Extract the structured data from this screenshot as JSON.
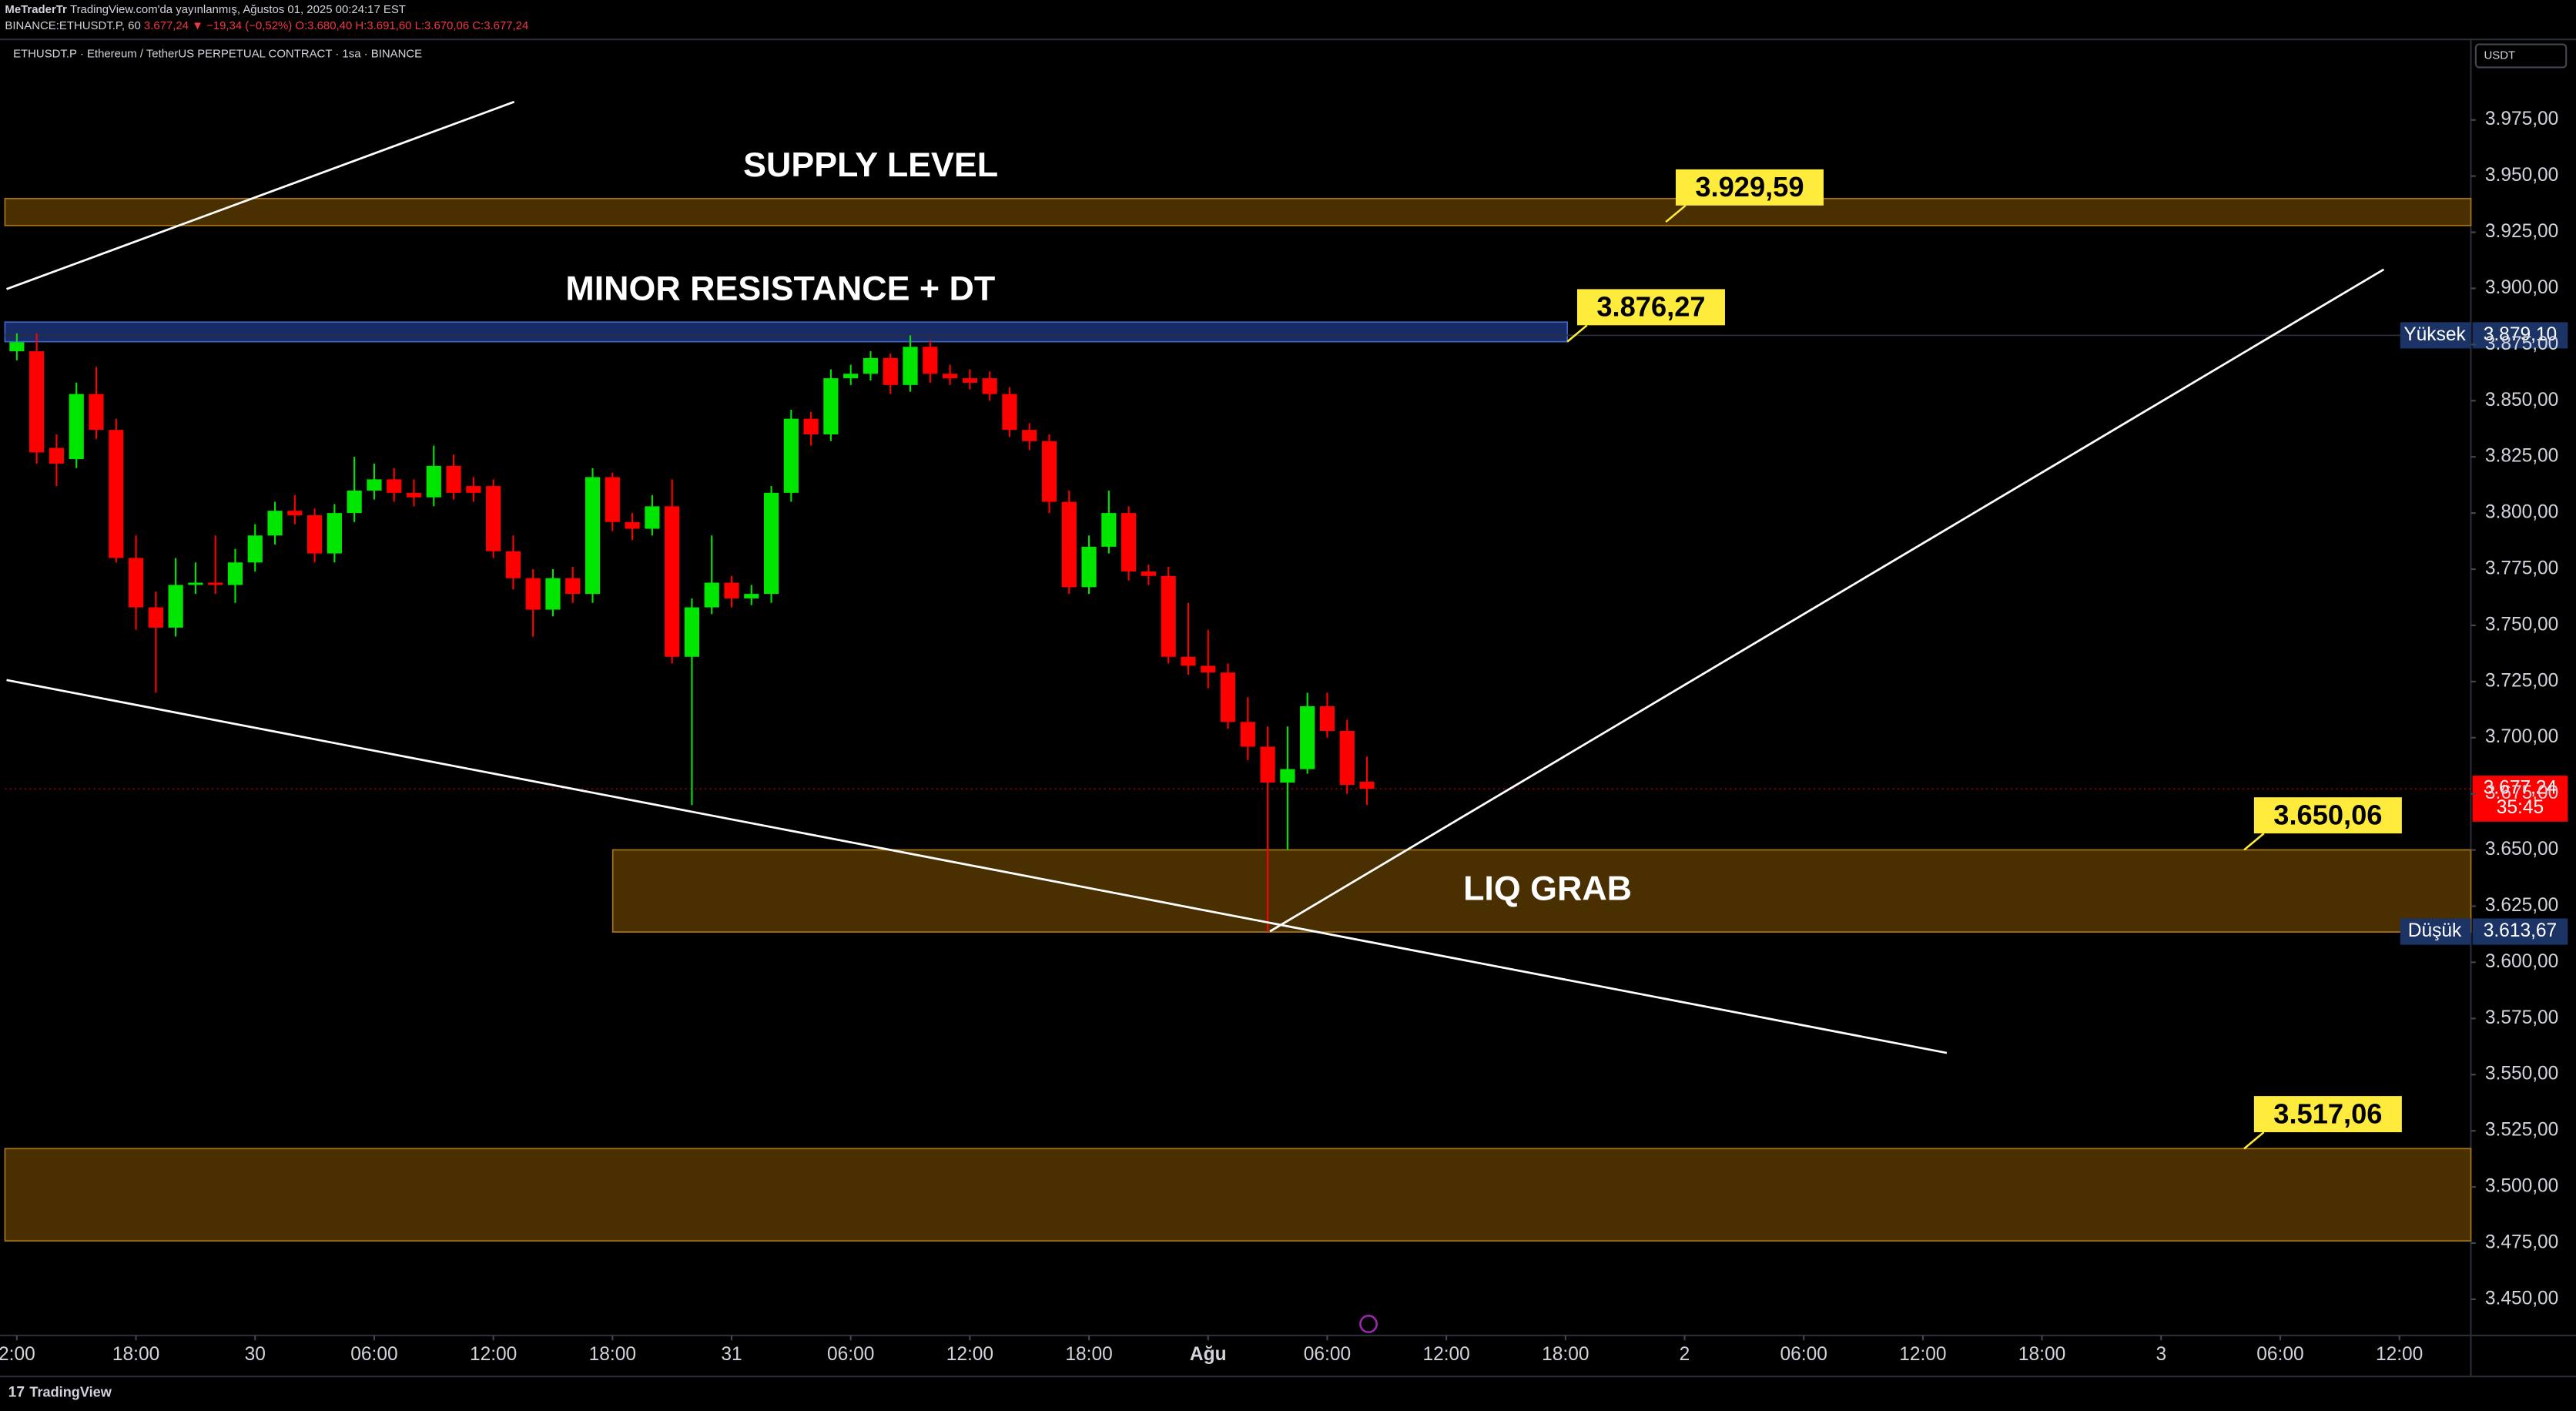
{
  "header": {
    "author": "MeTraderTr",
    "published": "TradingView.com'da yayınlanmış, Ağustos 01, 2025 00:24:17 EST",
    "symbol": "BINANCE:ETHUSDT.P, 60",
    "change": "3.677,24 ▼ −19,34 (−0,52%)",
    "ohlc": "O:3.680,40 H:3.691,60 L:3.670,06 C:3.677,24",
    "footer": "TradingView"
  },
  "chart_data": {
    "type": "candlestick",
    "title": "ETHUSDT.P · Ethereum / TetherUS PERPETUAL CONTRACT · 1sa · BINANCE",
    "currency": "USDT",
    "up_color": "#00e600",
    "down_color": "#ff0000",
    "open": [
      3872,
      3872,
      3829,
      3824,
      3853,
      3837,
      3780,
      3758,
      3749,
      3768,
      3769,
      3768,
      3778,
      3790,
      3801,
      3799,
      3782,
      3800,
      3810,
      3815,
      3809,
      3807,
      3821,
      3812,
      3812,
      3783,
      3771,
      3757,
      3771,
      3764,
      3816,
      3796,
      3793,
      3803,
      3736,
      3758,
      3769,
      3762,
      3764,
      3809,
      3842,
      3835,
      3860,
      3862,
      3869,
      3857,
      3874,
      3862,
      3860,
      3860,
      3853,
      3837,
      3832,
      3805,
      3767,
      3785,
      3800,
      3774,
      3772,
      3736,
      3732,
      3729,
      3707,
      3696,
      3680,
      3686,
      3714,
      3703,
      3680.4
    ],
    "high": [
      3880,
      3880,
      3835,
      3858,
      3865,
      3842,
      3790,
      3765,
      3780,
      3778,
      3790,
      3784,
      3795,
      3805,
      3808,
      3802,
      3804,
      3825,
      3822,
      3820,
      3815,
      3830,
      3826,
      3816,
      3815,
      3790,
      3775,
      3775,
      3776,
      3820,
      3818,
      3800,
      3808,
      3815,
      3762,
      3790,
      3772,
      3768,
      3812,
      3846,
      3845,
      3864,
      3866,
      3872,
      3871,
      3879.1,
      3877,
      3866,
      3864,
      3863,
      3856,
      3840,
      3835,
      3810,
      3790,
      3810,
      3803,
      3777,
      3776,
      3760,
      3748,
      3733,
      3718,
      3705,
      3705,
      3720,
      3720,
      3708,
      3691.6
    ],
    "low": [
      3868,
      3822,
      3812,
      3820,
      3833,
      3778,
      3748,
      3720,
      3745,
      3764,
      3764,
      3760,
      3774,
      3786,
      3795,
      3778,
      3778,
      3796,
      3806,
      3805,
      3803,
      3803,
      3806,
      3805,
      3780,
      3766,
      3745,
      3754,
      3760,
      3760,
      3792,
      3788,
      3790,
      3733,
      3670,
      3755,
      3758,
      3759,
      3760,
      3805,
      3830,
      3832,
      3857,
      3859,
      3853,
      3854,
      3858,
      3857,
      3855,
      3850,
      3834,
      3828,
      3800,
      3764,
      3764,
      3782,
      3770,
      3768,
      3733,
      3728,
      3722,
      3704,
      3690,
      3613.67,
      3650,
      3684,
      3700,
      3675,
      3670.06
    ],
    "close": [
      3876,
      3827,
      3822,
      3853,
      3837,
      3780,
      3758,
      3749,
      3768,
      3769,
      3768,
      3778,
      3790,
      3801,
      3799,
      3782,
      3800,
      3810,
      3815,
      3809,
      3807,
      3821,
      3809,
      3809,
      3783,
      3771,
      3757,
      3771,
      3764,
      3816,
      3796,
      3793,
      3803,
      3736,
      3758,
      3769,
      3762,
      3764,
      3809,
      3842,
      3835,
      3860,
      3862,
      3869,
      3857,
      3874,
      3862,
      3860,
      3858,
      3853,
      3837,
      3832,
      3805,
      3767,
      3785,
      3800,
      3774,
      3772,
      3736,
      3732,
      3729,
      3707,
      3696,
      3680,
      3686,
      3714,
      3703,
      3679,
      3677.24
    ],
    "xlim": [
      -0.6,
      123.6
    ],
    "xticks": [
      {
        "value": 0,
        "label": "2:00"
      },
      {
        "value": 6,
        "label": "18:00"
      },
      {
        "value": 12,
        "label": "30"
      },
      {
        "value": 18,
        "label": "06:00"
      },
      {
        "value": 24,
        "label": "12:00"
      },
      {
        "value": 30,
        "label": "18:00"
      },
      {
        "value": 36,
        "label": "31"
      },
      {
        "value": 42,
        "label": "06:00"
      },
      {
        "value": 48,
        "label": "12:00"
      },
      {
        "value": 54,
        "label": "18:00"
      },
      {
        "value": 60,
        "label": "Ağu"
      },
      {
        "value": 66,
        "label": "06:00"
      },
      {
        "value": 72,
        "label": "12:00"
      },
      {
        "value": 78,
        "label": "18:00"
      },
      {
        "value": 84,
        "label": "2"
      },
      {
        "value": 90,
        "label": "06:00"
      },
      {
        "value": 96,
        "label": "12:00"
      },
      {
        "value": 102,
        "label": "18:00"
      },
      {
        "value": 108,
        "label": "3"
      },
      {
        "value": 114,
        "label": "06:00"
      },
      {
        "value": 120,
        "label": "12:00"
      }
    ],
    "ylim": [
      3433.9,
      4010.1
    ],
    "yticks": [
      {
        "value": 3975,
        "label": "3.975,00"
      },
      {
        "value": 3950,
        "label": "3.950,00"
      },
      {
        "value": 3925,
        "label": "3.925,00"
      },
      {
        "value": 3900,
        "label": "3.900,00"
      },
      {
        "value": 3875,
        "label": "3.875,00"
      },
      {
        "value": 3850,
        "label": "3.850,00"
      },
      {
        "value": 3825,
        "label": "3.825,00"
      },
      {
        "value": 3800,
        "label": "3.800,00"
      },
      {
        "value": 3775,
        "label": "3.775,00"
      },
      {
        "value": 3750,
        "label": "3.750,00"
      },
      {
        "value": 3725,
        "label": "3.725,00"
      },
      {
        "value": 3700,
        "label": "3.700,00"
      },
      {
        "value": 3675,
        "label": "3.675,00"
      },
      {
        "value": 3650,
        "label": "3.650,00"
      },
      {
        "value": 3625,
        "label": "3.625,00"
      },
      {
        "value": 3600,
        "label": "3.600,00"
      },
      {
        "value": 3575,
        "label": "3.575,00"
      },
      {
        "value": 3550,
        "label": "3.550,00"
      },
      {
        "value": 3525,
        "label": "3.525,00"
      },
      {
        "value": 3500,
        "label": "3.500,00"
      },
      {
        "value": 3475,
        "label": "3.475,00"
      },
      {
        "value": 3450,
        "label": "3.450,00"
      }
    ],
    "zones": [
      {
        "label": "SUPPLY LEVEL",
        "low": 3928,
        "high": 3940,
        "color": "#4a3000",
        "border": "#a8741a"
      },
      {
        "label": "MINOR RESISTANCE + DT",
        "low": 3876.27,
        "high": 3885,
        "color": "#172b66",
        "border": "#3d63c4"
      },
      {
        "label": "LIQ GRAB",
        "low": 3613.5,
        "high": 3650.06,
        "color": "#4a3000",
        "border": "#a8741a"
      },
      {
        "low": 3476,
        "high": 3517.06,
        "color": "#4a3000",
        "border": "#a8741a"
      }
    ],
    "price_labels": [
      {
        "value": 3929.59,
        "label": "3.929,59"
      },
      {
        "value": 3876.27,
        "label": "3.876,27"
      },
      {
        "value": 3650.06,
        "label": "3.650,06"
      },
      {
        "value": 3517.06,
        "label": "3.517,06"
      }
    ],
    "last_price": {
      "value": 3677.24,
      "label": "3.677,24",
      "countdown": "35:45"
    },
    "high_tag": {
      "name": "Yüksek",
      "value": 3879.1,
      "label": "3.879,10"
    },
    "low_tag": {
      "name": "Düşük",
      "value": 3613.67,
      "label": "3.613,67"
    }
  }
}
